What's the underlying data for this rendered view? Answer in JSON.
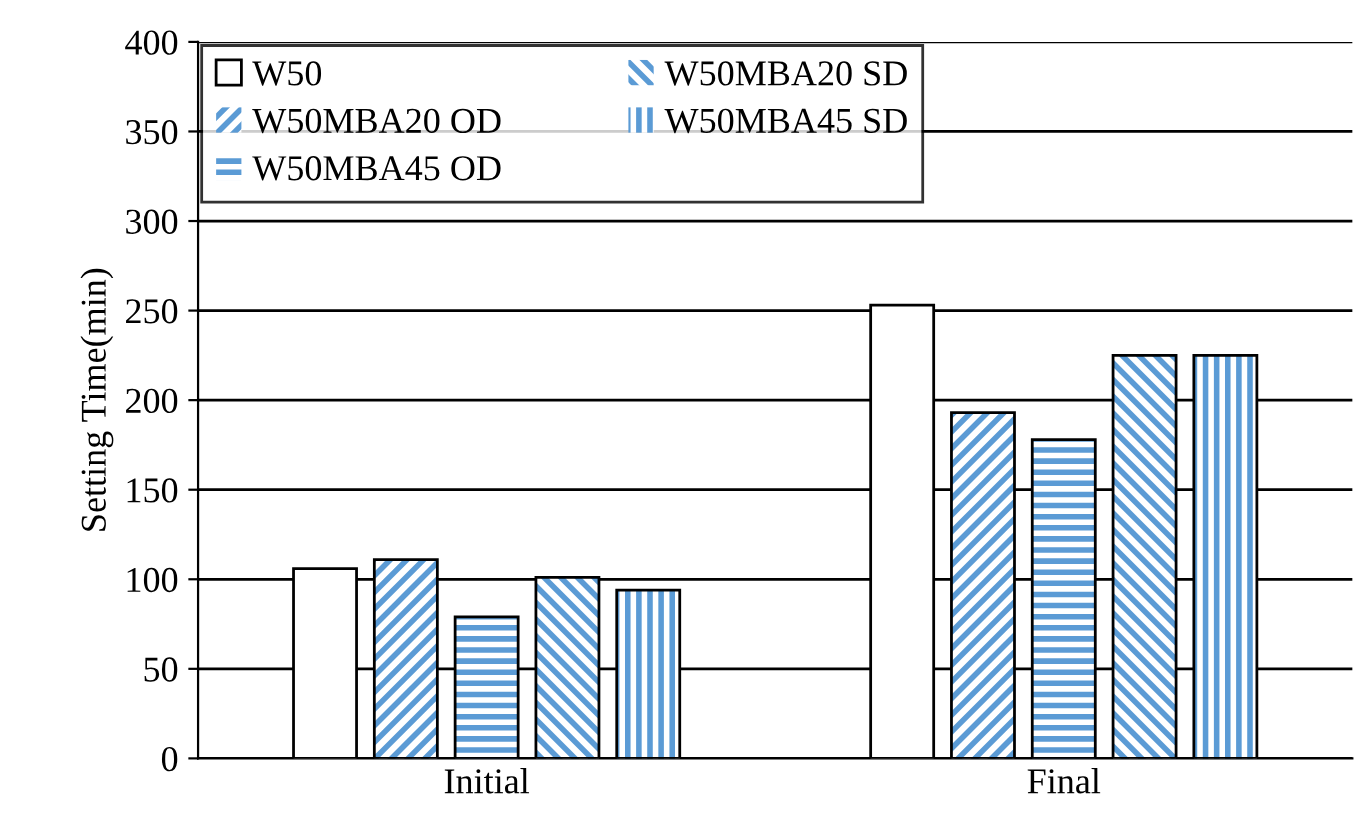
{
  "chart_data": {
    "type": "bar",
    "ylabel": "Setting Time(min)",
    "categories": [
      "Initial",
      "Final"
    ],
    "series": [
      {
        "name": "W50",
        "color": "#ffffff",
        "values": [
          106,
          253
        ]
      },
      {
        "name": "W50MBA20 OD",
        "color": "#5b9bd5",
        "values": [
          111,
          193
        ]
      },
      {
        "name": "W50MBA45 OD",
        "color": "#5b9bd5",
        "values": [
          79,
          178
        ]
      },
      {
        "name": "W50MBA20 SD",
        "color": "#5b9bd5",
        "values": [
          101,
          225
        ]
      },
      {
        "name": "W50MBA45 SD",
        "color": "#5b9bd5",
        "values": [
          94,
          225
        ]
      }
    ],
    "ylim": [
      0,
      400
    ],
    "yticks": [
      0,
      50,
      100,
      150,
      200,
      250,
      300,
      350,
      400
    ],
    "grid": "y",
    "legend": "top left"
  }
}
